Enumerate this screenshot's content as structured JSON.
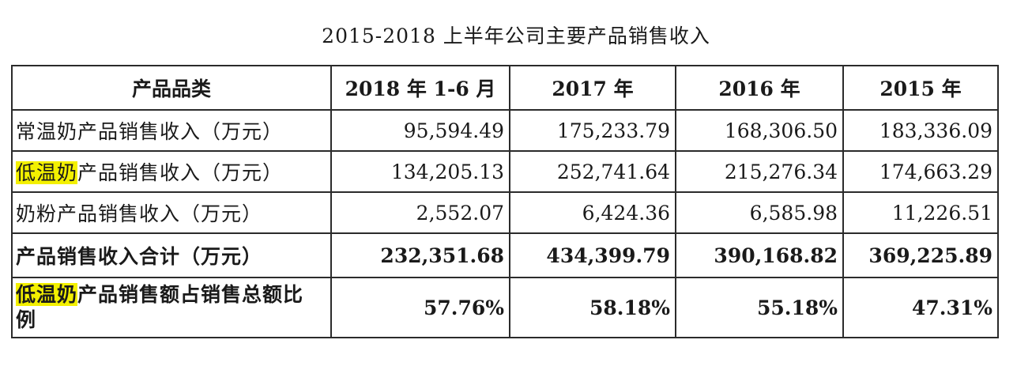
{
  "title": "2015-2018 上半年公司主要产品销售收入",
  "table": {
    "headers": [
      "产品品类",
      "2018 年 1-6 月",
      "2017 年",
      "2016 年",
      "2015 年"
    ],
    "rows": [
      {
        "highlight": "",
        "label": "常温奶产品销售收入（万元）",
        "values": [
          "95,594.49",
          "175,233.79",
          "168,306.50",
          "183,336.09"
        ]
      },
      {
        "highlight": "低温奶",
        "label": "产品销售收入（万元）",
        "values": [
          "134,205.13",
          "252,741.64",
          "215,276.34",
          "174,663.29"
        ]
      },
      {
        "highlight": "",
        "label": "奶粉产品销售收入（万元）",
        "values": [
          "2,552.07",
          "6,424.36",
          "6,585.98",
          "11,226.51"
        ]
      },
      {
        "highlight": "",
        "label": "产品销售收入合计（万元）",
        "values": [
          "232,351.68",
          "434,399.79",
          "390,168.82",
          "369,225.89"
        ]
      },
      {
        "highlight": "低温奶",
        "label": "产品销售额占销售总额比例",
        "values": [
          "57.76%",
          "58.18%",
          "55.18%",
          "47.31%"
        ]
      }
    ]
  },
  "colors": {
    "highlight": "#f3f000",
    "border": "#2b2b2b",
    "text": "#1a1a1a"
  }
}
